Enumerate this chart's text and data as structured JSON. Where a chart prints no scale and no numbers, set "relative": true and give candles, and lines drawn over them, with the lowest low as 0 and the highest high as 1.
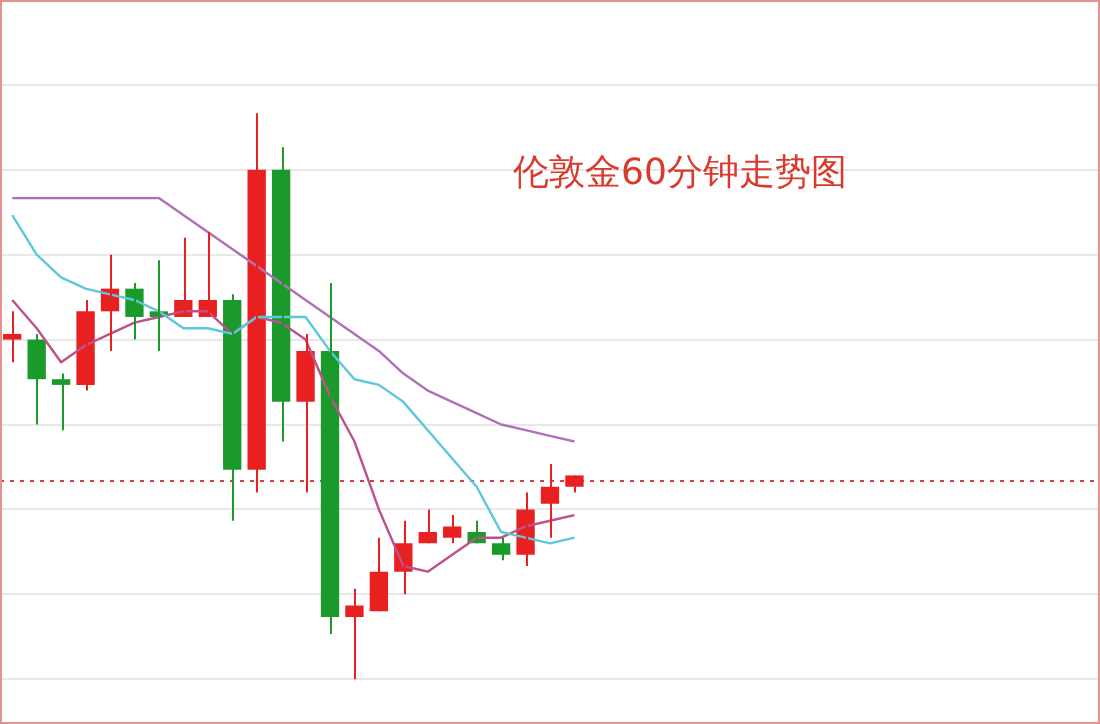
{
  "chart_data": {
    "type": "candlestick",
    "title": "伦敦金60分钟走势图",
    "relative": true,
    "grid": "y",
    "legend": false,
    "categories": [
      null,
      null,
      null,
      null,
      null,
      null,
      null,
      null,
      null,
      null,
      null,
      null,
      null,
      null,
      null,
      null,
      null,
      null,
      null,
      null,
      null,
      null,
      null,
      null,
      null,
      null,
      null,
      null,
      null,
      null,
      null,
      null,
      null,
      null,
      null,
      null,
      null,
      null,
      null,
      null,
      null,
      null,
      null,
      null,
      null
    ],
    "ohlc": [
      [
        0.6,
        0.65,
        0.56,
        0.61
      ],
      [
        0.6,
        0.61,
        0.45,
        0.53
      ],
      [
        0.53,
        0.54,
        0.44,
        0.52
      ],
      [
        0.52,
        0.67,
        0.51,
        0.65
      ],
      [
        0.65,
        0.75,
        0.58,
        0.69
      ],
      [
        0.69,
        0.7,
        0.6,
        0.64
      ],
      [
        0.65,
        0.74,
        0.58,
        0.64
      ],
      [
        0.64,
        0.78,
        0.64,
        0.67
      ],
      [
        0.64,
        0.79,
        0.64,
        0.67
      ],
      [
        0.67,
        0.68,
        0.28,
        0.37
      ],
      [
        0.37,
        1.0,
        0.33,
        0.9
      ],
      [
        0.9,
        0.94,
        0.42,
        0.49
      ],
      [
        0.49,
        0.61,
        0.33,
        0.58
      ],
      [
        0.58,
        0.7,
        0.08,
        0.11
      ],
      [
        0.11,
        0.16,
        0,
        0.13
      ],
      [
        0.12,
        0.25,
        0.12,
        0.19
      ],
      [
        0.19,
        0.28,
        0.15,
        0.24
      ],
      [
        0.24,
        0.3,
        0.24,
        0.26
      ],
      [
        0.25,
        0.29,
        0.24,
        0.27
      ],
      [
        0.26,
        0.28,
        0.24,
        0.24
      ],
      [
        0.24,
        0.25,
        0.21,
        0.22
      ],
      [
        0.22,
        0.33,
        0.2,
        0.3
      ],
      [
        0.31,
        0.38,
        0.25,
        0.34
      ],
      [
        0.34,
        0.36,
        0.33,
        0.36
      ],
      null,
      null,
      null,
      null,
      null,
      null,
      null,
      null,
      null,
      null,
      null,
      null,
      null,
      null,
      null,
      null,
      null,
      null,
      null,
      null,
      null
    ],
    "colors": [
      "#e8201f",
      "#1a9a2a",
      "#1a9a2a",
      "#e8201f",
      "#e8201f",
      "#1a9a2a",
      "#1a9a2a",
      "#e8201f",
      "#e8201f",
      "#1a9a2a",
      "#e8201f",
      "#1a9a2a",
      "#e8201f",
      "#1a9a2a",
      "#e8201f",
      "#e8201f",
      "#e8201f",
      "#e8201f",
      "#e8201f",
      "#1a9a2a",
      "#1a9a2a",
      "#e8201f",
      "#e8201f",
      "#e8201f",
      null,
      null,
      null,
      null,
      null,
      null,
      null,
      null,
      null,
      null,
      null,
      null,
      null,
      null,
      null,
      null,
      null,
      null,
      null,
      null,
      null
    ],
    "series": [
      {
        "type": "line",
        "color": "#b070b8",
        "values": [
          0.85,
          0.85,
          0.85,
          0.85,
          0.85,
          0.85,
          0.85,
          0.82,
          0.79,
          0.76,
          0.73,
          0.7,
          0.67,
          0.64,
          0.61,
          0.58,
          0.54,
          0.51,
          0.49,
          0.47,
          0.45,
          0.44,
          0.43,
          0.42,
          null,
          null,
          null,
          null,
          null,
          null,
          null,
          null,
          null,
          null,
          null,
          null,
          null,
          null,
          null,
          null,
          null,
          null,
          null,
          null,
          null
        ]
      },
      {
        "type": "line",
        "color": "#5cc8dc",
        "values": [
          0.82,
          0.75,
          0.71,
          0.69,
          0.68,
          0.67,
          0.65,
          0.62,
          0.62,
          0.61,
          0.64,
          0.64,
          0.64,
          0.58,
          0.53,
          0.52,
          0.49,
          0.44,
          0.39,
          0.34,
          0.26,
          0.25,
          0.24,
          0.25,
          null,
          null,
          null,
          null,
          null,
          null,
          null,
          null,
          null,
          null,
          null,
          null,
          null,
          null,
          null,
          null,
          null,
          null,
          null,
          null,
          null
        ]
      },
      {
        "type": "line",
        "color": "#c0508c",
        "values": [
          0.67,
          0.62,
          0.56,
          0.59,
          0.61,
          0.63,
          0.64,
          0.65,
          0.65,
          0.61,
          0.64,
          0.63,
          0.6,
          0.5,
          0.42,
          0.3,
          0.2,
          0.19,
          0.22,
          0.25,
          0.25,
          0.27,
          0.28,
          0.29,
          null,
          null,
          null,
          null,
          null,
          null,
          null,
          null,
          null,
          null,
          null,
          null,
          null,
          null,
          null,
          null,
          null,
          null,
          null,
          null,
          null
        ]
      }
    ],
    "ref_lines": [
      {
        "axis": "y",
        "value": 0.35,
        "color": "#d04040",
        "line_style": "dotted"
      }
    ]
  }
}
